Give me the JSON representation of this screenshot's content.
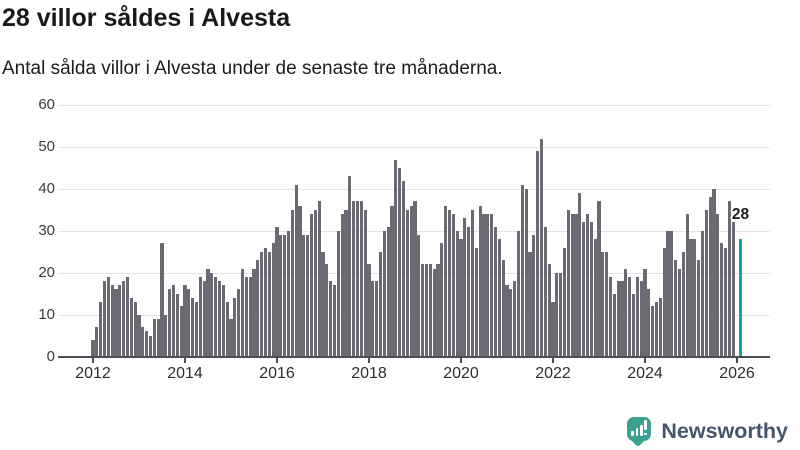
{
  "title": "28 villor såldes i Alvesta",
  "subtitle": "Antal sålda villor i Alvesta under de senaste tre månaderna.",
  "annotation": {
    "label": "28"
  },
  "branding": {
    "name": "Newsworthy"
  },
  "colors": {
    "bar": "#6a6a72",
    "highlight": "#13a1a1",
    "gridline": "#e4e4e4",
    "axis": "#4d4d55",
    "logo_teal": "#3aa18e",
    "logo_text": "#45566b"
  },
  "chart_data": {
    "type": "bar",
    "title": "28 villor såldes i Alvesta",
    "subtitle": "Antal sålda villor i Alvesta under de senaste tre månaderna.",
    "xlabel": "",
    "ylabel": "",
    "x_unit": "month",
    "start_month": "2012-01",
    "end_month": "2026-02",
    "ylim": [
      0,
      60
    ],
    "y_ticks": [
      0,
      10,
      20,
      30,
      40,
      50,
      60
    ],
    "x_tick_labels": [
      "2012",
      "2014",
      "2016",
      "2018",
      "2020",
      "2022",
      "2024",
      "2026"
    ],
    "x_tick_month_indices": [
      0,
      24,
      48,
      72,
      96,
      120,
      144,
      168
    ],
    "grid": "horizontal",
    "legend": "none",
    "highlight_last_value": 28,
    "values_by_year": {
      "2012": [
        4,
        7,
        13,
        18,
        19,
        17,
        16,
        17,
        18,
        19,
        14,
        13
      ],
      "2013": [
        10,
        7,
        6,
        5,
        9,
        9,
        27,
        10,
        16,
        17,
        15,
        12
      ],
      "2014": [
        17,
        16,
        14,
        13,
        19,
        18,
        21,
        20,
        19,
        18,
        17,
        13
      ],
      "2015": [
        9,
        14,
        16,
        21,
        19,
        19,
        21,
        23,
        25,
        26,
        25,
        27
      ],
      "2016": [
        31,
        29,
        29,
        30,
        35,
        41,
        36,
        29,
        29,
        34,
        35,
        37
      ],
      "2017": [
        25,
        22,
        18,
        17,
        30,
        34,
        35,
        43,
        37,
        37,
        37,
        35
      ],
      "2018": [
        22,
        18,
        18,
        25,
        30,
        31,
        36,
        47,
        45,
        42,
        35,
        36
      ],
      "2019": [
        37,
        29,
        22,
        22,
        22,
        21,
        22,
        27,
        36,
        35,
        34,
        30
      ],
      "2020": [
        28,
        33,
        31,
        35,
        26,
        36,
        34,
        34,
        34,
        31,
        28,
        23
      ],
      "2021": [
        17,
        16,
        18,
        30,
        41,
        40,
        25,
        29,
        49,
        52,
        31,
        22
      ],
      "2022": [
        13,
        20,
        20,
        26,
        35,
        34,
        34,
        39,
        32,
        34,
        32,
        28
      ],
      "2023": [
        37,
        25,
        25,
        19,
        15,
        18,
        18,
        21,
        19,
        15,
        19,
        18
      ],
      "2024": [
        21,
        16,
        12,
        13,
        14,
        26,
        30,
        30,
        23,
        21,
        25,
        34
      ],
      "2025": [
        28,
        28,
        23,
        30,
        35,
        38,
        40,
        34,
        27,
        26,
        37,
        32
      ],
      "2026": [
        null,
        28
      ]
    }
  }
}
